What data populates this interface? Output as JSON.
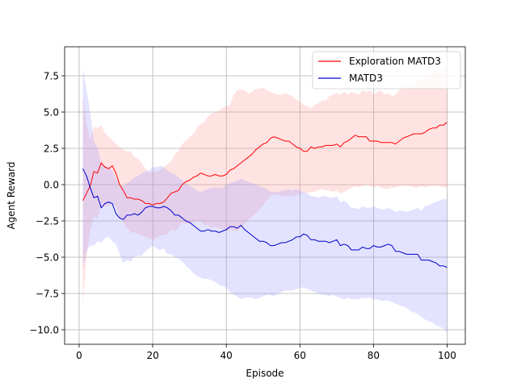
{
  "chart_data": {
    "type": "line",
    "title": "",
    "xlabel": "Episode",
    "ylabel": "Agent Reward",
    "xlim": [
      -3.95,
      104.95
    ],
    "ylim": [
      -11.0,
      9.5
    ],
    "xticks": [
      0,
      20,
      40,
      60,
      80,
      100
    ],
    "xtick_labels": [
      "0",
      "20",
      "40",
      "60",
      "80",
      "100"
    ],
    "yticks": [
      -10.0,
      -7.5,
      -5.0,
      -2.5,
      0.0,
      2.5,
      5.0,
      7.5
    ],
    "ytick_labels": [
      "−10.0",
      "−7.5",
      "−5.0",
      "−2.5",
      "0.0",
      "2.5",
      "5.0",
      "7.5"
    ],
    "grid": true,
    "legend_position": "top-right",
    "x": [
      1,
      2,
      3,
      4,
      5,
      6,
      7,
      8,
      9,
      10,
      11,
      12,
      13,
      14,
      15,
      16,
      17,
      18,
      19,
      20,
      21,
      22,
      23,
      24,
      25,
      26,
      27,
      28,
      29,
      30,
      31,
      32,
      33,
      34,
      35,
      36,
      37,
      38,
      39,
      40,
      41,
      42,
      43,
      44,
      45,
      46,
      47,
      48,
      49,
      50,
      51,
      52,
      53,
      54,
      55,
      56,
      57,
      58,
      59,
      60,
      61,
      62,
      63,
      64,
      65,
      66,
      67,
      68,
      69,
      70,
      71,
      72,
      73,
      74,
      75,
      76,
      77,
      78,
      79,
      80,
      81,
      82,
      83,
      84,
      85,
      86,
      87,
      88,
      89,
      90,
      91,
      92,
      93,
      94,
      95,
      96,
      97,
      98,
      99,
      100
    ],
    "series": [
      {
        "name": "Exploration MATD3",
        "color": "#ff0000",
        "band_color": "#ff9999",
        "values": [
          -1.1,
          -0.6,
          -0.1,
          0.9,
          0.8,
          1.5,
          1.2,
          1.1,
          1.3,
          0.8,
          0.0,
          -0.4,
          -0.9,
          -0.9,
          -1.0,
          -1.0,
          -1.1,
          -1.3,
          -1.3,
          -1.4,
          -1.3,
          -1.3,
          -1.2,
          -0.9,
          -0.6,
          -0.5,
          -0.4,
          0.0,
          0.2,
          0.3,
          0.5,
          0.6,
          0.8,
          0.7,
          0.6,
          0.6,
          0.7,
          0.6,
          0.6,
          0.7,
          1.0,
          1.1,
          1.3,
          1.5,
          1.7,
          1.9,
          2.1,
          2.4,
          2.6,
          2.8,
          2.9,
          3.2,
          3.3,
          3.2,
          3.1,
          3.0,
          3.0,
          2.8,
          2.6,
          2.5,
          2.3,
          2.3,
          2.6,
          2.5,
          2.6,
          2.6,
          2.7,
          2.7,
          2.7,
          2.8,
          2.6,
          2.9,
          3.0,
          3.2,
          3.4,
          3.3,
          3.3,
          3.3,
          3.0,
          3.0,
          3.0,
          2.9,
          2.9,
          2.9,
          2.9,
          2.8,
          3.0,
          3.2,
          3.3,
          3.4,
          3.5,
          3.5,
          3.5,
          3.6,
          3.8,
          3.9,
          3.9,
          4.1,
          4.1,
          4.3
        ],
        "upper": [
          6.0,
          4.2,
          3.1,
          4.0,
          3.9,
          4.1,
          3.6,
          3.3,
          3.1,
          2.8,
          2.6,
          2.4,
          2.3,
          2.3,
          1.9,
          1.8,
          1.5,
          1.1,
          0.8,
          0.9,
          0.9,
          1.0,
          1.2,
          1.4,
          1.6,
          2.1,
          2.3,
          2.8,
          3.0,
          3.3,
          3.5,
          3.9,
          4.2,
          4.3,
          4.7,
          4.9,
          5.0,
          5.1,
          5.3,
          5.4,
          5.5,
          6.2,
          6.5,
          6.6,
          6.5,
          6.3,
          6.4,
          6.6,
          6.6,
          6.7,
          6.5,
          6.4,
          6.3,
          6.2,
          6.2,
          6.3,
          6.2,
          6.1,
          5.9,
          5.7,
          5.5,
          5.4,
          5.3,
          5.5,
          5.6,
          5.8,
          5.8,
          6.1,
          6.2,
          6.3,
          6.2,
          6.4,
          6.2,
          6.4,
          6.3,
          6.2,
          6.5,
          6.4,
          6.5,
          6.2,
          6.4,
          6.5,
          6.2,
          6.3,
          6.1,
          6.2,
          6.5,
          6.7,
          6.9,
          6.8,
          6.9,
          7.2,
          7.3,
          7.4,
          7.5,
          7.6,
          7.8,
          7.8,
          7.9,
          8.3
        ],
        "lower": [
          -8.3,
          -5.0,
          -3.2,
          -2.2,
          -2.3,
          -1.5,
          -1.5,
          -1.5,
          -1.2,
          -1.5,
          -2.2,
          -2.6,
          -3.0,
          -3.3,
          -3.3,
          -3.4,
          -3.5,
          -3.6,
          -3.7,
          -3.8,
          -3.7,
          -3.5,
          -3.5,
          -3.4,
          -3.1,
          -3.2,
          -3.0,
          -2.6,
          -2.7,
          -2.7,
          -2.6,
          -2.5,
          -2.5,
          -2.8,
          -2.8,
          -3.0,
          -2.9,
          -3.0,
          -3.1,
          -3.2,
          -3.1,
          -3.2,
          -3.2,
          -2.9,
          -2.7,
          -2.4,
          -2.2,
          -2.0,
          -1.7,
          -1.4,
          -1.1,
          -0.8,
          -0.7,
          -0.7,
          -0.8,
          -0.8,
          -0.8,
          -0.8,
          -0.7,
          -0.7,
          -0.5,
          -0.6,
          -0.5,
          -0.5,
          -0.4,
          -0.3,
          -0.4,
          -0.4,
          -0.5,
          -0.4,
          -0.6,
          -0.5,
          -0.4,
          -0.2,
          -0.1,
          -0.2,
          -0.1,
          0.0,
          -0.1,
          -0.2,
          -0.1,
          -0.2,
          -0.3,
          -0.3,
          -0.2,
          -0.2,
          -0.1,
          -0.1,
          -0.1,
          -0.1,
          -0.2,
          -0.2,
          -0.1,
          -0.2,
          -0.1,
          -0.1,
          -0.1,
          -0.1,
          -0.2,
          -0.2
        ]
      },
      {
        "name": "MATD3",
        "color": "#0000cc",
        "band_color": "#9999ff",
        "values": [
          1.1,
          0.6,
          -0.2,
          -0.9,
          -0.8,
          -1.6,
          -1.3,
          -1.2,
          -1.3,
          -2.0,
          -2.3,
          -2.4,
          -2.1,
          -2.1,
          -2.0,
          -2.1,
          -1.9,
          -1.6,
          -1.5,
          -1.5,
          -1.6,
          -1.6,
          -1.5,
          -1.6,
          -1.8,
          -2.1,
          -2.1,
          -2.3,
          -2.5,
          -2.6,
          -2.8,
          -3.0,
          -3.2,
          -3.2,
          -3.1,
          -3.2,
          -3.2,
          -3.3,
          -3.2,
          -3.1,
          -2.9,
          -2.9,
          -3.0,
          -2.8,
          -3.1,
          -3.3,
          -3.5,
          -3.7,
          -3.9,
          -3.9,
          -4.0,
          -4.2,
          -4.2,
          -4.1,
          -4.0,
          -4.0,
          -3.9,
          -3.8,
          -3.6,
          -3.6,
          -3.4,
          -3.5,
          -3.8,
          -3.8,
          -3.9,
          -3.9,
          -3.9,
          -4.0,
          -3.9,
          -3.8,
          -4.2,
          -4.1,
          -4.2,
          -4.5,
          -4.5,
          -4.5,
          -4.3,
          -4.4,
          -4.4,
          -4.2,
          -4.3,
          -4.3,
          -4.2,
          -4.1,
          -4.2,
          -4.6,
          -4.6,
          -4.7,
          -4.8,
          -4.8,
          -4.8,
          -4.8,
          -5.2,
          -5.2,
          -5.2,
          -5.3,
          -5.4,
          -5.6,
          -5.6,
          -5.7
        ],
        "upper": [
          8.0,
          6.5,
          5.0,
          3.0,
          2.5,
          1.5,
          1.3,
          1.2,
          1.0,
          0.4,
          0.0,
          -0.1,
          0.1,
          0.3,
          0.5,
          0.6,
          0.8,
          0.9,
          1.0,
          1.2,
          1.2,
          1.3,
          1.2,
          1.0,
          0.8,
          0.7,
          0.5,
          0.3,
          0.1,
          -0.1,
          -0.2,
          -0.4,
          -0.5,
          -0.4,
          -0.3,
          -0.2,
          -0.2,
          -0.2,
          -0.2,
          0.0,
          0.1,
          0.2,
          0.3,
          0.4,
          0.3,
          0.2,
          0.1,
          0.0,
          -0.1,
          -0.2,
          -0.3,
          -0.5,
          -0.5,
          -0.5,
          -0.4,
          -0.4,
          -0.3,
          -0.4,
          -0.3,
          -0.4,
          -0.5,
          -0.6,
          -0.8,
          -0.8,
          -0.9,
          -0.8,
          -0.8,
          -0.9,
          -0.9,
          -0.8,
          -1.2,
          -1.1,
          -1.3,
          -1.6,
          -1.6,
          -1.7,
          -1.5,
          -1.6,
          -1.6,
          -1.5,
          -1.6,
          -1.7,
          -1.7,
          -1.6,
          -1.7,
          -1.9,
          -1.8,
          -1.8,
          -1.9,
          -1.8,
          -1.7,
          -1.6,
          -1.8,
          -1.5,
          -1.4,
          -1.3,
          -1.2,
          -1.1,
          -1.0,
          -1.0
        ],
        "lower": [
          -5.8,
          -4.6,
          -4.2,
          -4.2,
          -3.9,
          -4.0,
          -3.7,
          -3.6,
          -3.9,
          -4.1,
          -4.8,
          -5.4,
          -5.2,
          -5.3,
          -5.0,
          -4.9,
          -4.9,
          -4.6,
          -4.4,
          -4.2,
          -4.4,
          -4.5,
          -4.4,
          -4.8,
          -4.8,
          -5.0,
          -5.1,
          -5.3,
          -5.6,
          -5.8,
          -6.1,
          -6.3,
          -6.4,
          -6.5,
          -6.5,
          -6.6,
          -6.7,
          -6.9,
          -7.0,
          -7.1,
          -7.4,
          -7.6,
          -7.7,
          -7.9,
          -7.8,
          -7.8,
          -7.8,
          -7.9,
          -7.8,
          -7.7,
          -7.6,
          -7.6,
          -7.7,
          -7.5,
          -7.4,
          -7.3,
          -7.3,
          -7.3,
          -7.2,
          -7.1,
          -7.1,
          -7.2,
          -7.3,
          -7.4,
          -7.5,
          -7.6,
          -7.6,
          -7.7,
          -7.6,
          -7.7,
          -7.8,
          -7.9,
          -7.8,
          -7.9,
          -7.9,
          -7.9,
          -7.8,
          -7.8,
          -7.8,
          -7.9,
          -7.9,
          -8.0,
          -8.0,
          -8.0,
          -8.1,
          -8.2,
          -8.3,
          -8.4,
          -8.5,
          -8.7,
          -8.8,
          -8.9,
          -9.1,
          -9.3,
          -9.4,
          -9.5,
          -9.7,
          -9.8,
          -9.9,
          -10.2
        ]
      }
    ]
  }
}
